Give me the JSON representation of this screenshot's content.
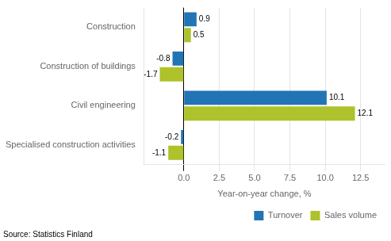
{
  "chart_data": {
    "type": "bar",
    "orientation": "horizontal",
    "categories": [
      "Construction",
      "Construction of buildings",
      "Civil engineering",
      "Specialised construction activities"
    ],
    "series": [
      {
        "name": "Turnover",
        "color": "#2175b5",
        "values": [
          0.9,
          -0.8,
          10.1,
          -0.2
        ]
      },
      {
        "name": "Sales volume",
        "color": "#aec22b",
        "values": [
          0.5,
          -1.7,
          12.1,
          -1.1
        ]
      }
    ],
    "xlabel": "Year-on-year change, %",
    "xlim": [
      -2.8,
      14.2
    ],
    "xticks": [
      {
        "value": 0.0,
        "label": "0.0"
      },
      2.5,
      {
        "value": 5.0,
        "label": "5.0"
      },
      7.5,
      {
        "value": 10.0,
        "label": "10.0"
      },
      12.5
    ],
    "grid": true,
    "legend": "lower right",
    "data_labels": true,
    "annotations": [
      "Source: Statistics Finland"
    ]
  }
}
